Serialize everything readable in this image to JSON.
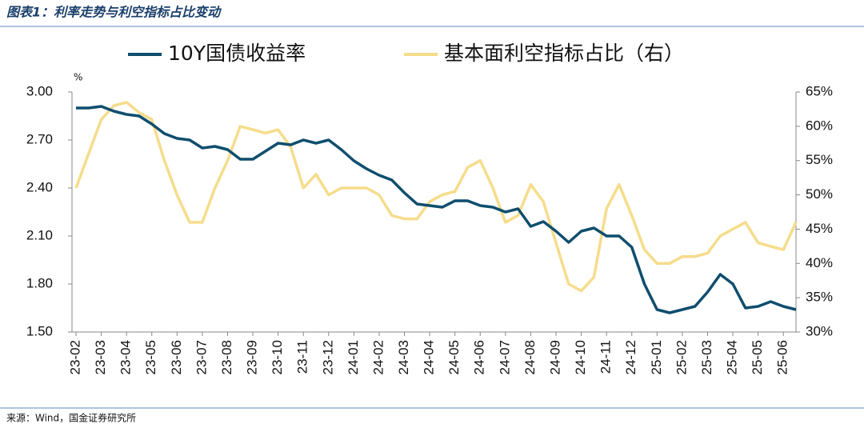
{
  "chart_data": {
    "type": "line",
    "title": "图表1：利率走势与利空指标占比变动",
    "source": "来源：Wind，国金证券研究所",
    "y_label": "%",
    "categories": [
      "23-02",
      null,
      "23-03",
      null,
      "23-04",
      null,
      "23-05",
      null,
      "23-06",
      null,
      "23-07",
      null,
      "23-08",
      null,
      "23-09",
      null,
      "23-10",
      null,
      "23-11",
      null,
      "23-12",
      null,
      "24-01",
      null,
      "24-02",
      null,
      "24-03",
      null,
      "24-04",
      null,
      "24-05",
      null,
      "24-06",
      null,
      "24-07",
      null,
      "24-08",
      null,
      "24-09",
      null,
      "24-10",
      null,
      "24-11",
      null,
      "24-12",
      null,
      "25-01",
      null,
      "25-02",
      null,
      "25-03",
      null,
      "25-04",
      null,
      "25-05",
      null,
      "25-06",
      null
    ],
    "series": [
      {
        "name": "10Y国债收益率",
        "color": "#0f4e6e",
        "axis": "y",
        "values": [
          2.9,
          2.9,
          2.91,
          2.88,
          2.86,
          2.85,
          2.8,
          2.74,
          2.71,
          2.7,
          2.65,
          2.66,
          2.64,
          2.58,
          2.58,
          2.63,
          2.68,
          2.67,
          2.7,
          2.68,
          2.7,
          2.64,
          2.57,
          2.52,
          2.48,
          2.45,
          2.37,
          2.3,
          2.29,
          2.28,
          2.32,
          2.32,
          2.29,
          2.28,
          2.25,
          2.27,
          2.16,
          2.19,
          2.13,
          2.06,
          2.13,
          2.15,
          2.1,
          2.1,
          2.03,
          1.8,
          1.64,
          1.62,
          1.64,
          1.66,
          1.75,
          1.86,
          1.8,
          1.65,
          1.66,
          1.69,
          1.66,
          1.64
        ]
      },
      {
        "name": "基本面利空指标占比（右）",
        "color": "#f6dc8b",
        "axis": "y2",
        "values": [
          51,
          56,
          61,
          63,
          63.5,
          62,
          61,
          55,
          50,
          46,
          46,
          51,
          55,
          60,
          59.5,
          59,
          59.5,
          57,
          51,
          53,
          50,
          51,
          51,
          51,
          50,
          47,
          46.5,
          46.5,
          49,
          50,
          50.5,
          54,
          55,
          51,
          46,
          47,
          51.5,
          49,
          43,
          37,
          36,
          38,
          48,
          51.5,
          47,
          42,
          40,
          40,
          41,
          41,
          41.5,
          44,
          45,
          46,
          43,
          42.5,
          42,
          46
        ]
      }
    ],
    "ylim": [
      1.5,
      3.0
    ],
    "yticks": [
      {
        "value": 1.5,
        "label": "1.50"
      },
      {
        "value": 1.8,
        "label": "1.80"
      },
      {
        "value": 2.1,
        "label": "2.10"
      },
      {
        "value": 2.4,
        "label": "2.40"
      },
      {
        "value": 2.7,
        "label": "2.70"
      },
      {
        "value": 3.0,
        "label": "3.00"
      }
    ],
    "y2lim": [
      30,
      65
    ],
    "y2ticks": [
      {
        "value": 30,
        "label": "30%"
      },
      {
        "value": 35,
        "label": "35%"
      },
      {
        "value": 40,
        "label": "40%"
      },
      {
        "value": 45,
        "label": "45%"
      },
      {
        "value": 50,
        "label": "50%"
      },
      {
        "value": 55,
        "label": "55%"
      },
      {
        "value": 60,
        "label": "60%"
      },
      {
        "value": 65,
        "label": "65%"
      }
    ],
    "legend": "top"
  }
}
